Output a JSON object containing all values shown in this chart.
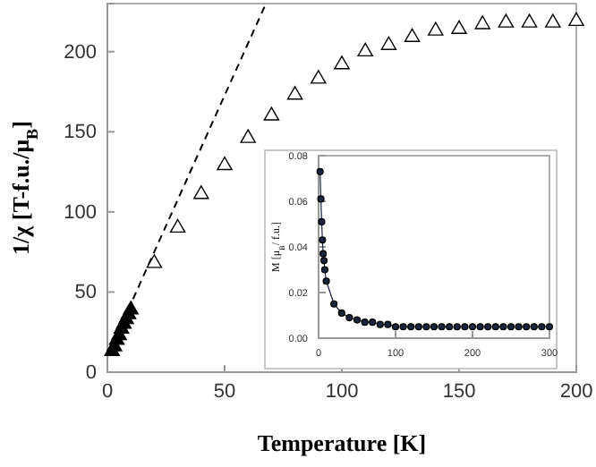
{
  "chart_data": [
    {
      "type": "scatter",
      "xlabel": "Temperature [K]",
      "ylabel": "1/χ [T-f.u./μ$_{B}$]",
      "xlim": [
        0,
        200
      ],
      "ylim": [
        0,
        230
      ],
      "xticks": [
        0,
        50,
        100,
        150,
        200
      ],
      "yticks": [
        0,
        50,
        100,
        150,
        200
      ],
      "grid": false,
      "series": [
        {
          "type": "line",
          "color": "#000000",
          "line_style": "dashed",
          "marker": "none",
          "x": [
            0,
            67
          ],
          "values": [
            10,
            228
          ]
        },
        {
          "color": "#ffffff",
          "marker": "triangle",
          "x": [
            20,
            30,
            40,
            50,
            60,
            70,
            80,
            90,
            100,
            110,
            120,
            130,
            140,
            150,
            160,
            170,
            180,
            190,
            200
          ],
          "values": [
            68,
            90,
            111,
            129,
            146,
            160,
            173,
            183,
            192,
            200,
            204,
            209,
            213,
            214,
            217,
            218,
            218,
            218,
            219
          ]
        },
        {
          "color": "#000000",
          "marker": "triangle",
          "x": [
            2,
            3,
            4,
            5,
            6,
            7,
            8,
            9,
            10
          ],
          "values": [
            13,
            16,
            20,
            23,
            27,
            30,
            33,
            36,
            39
          ]
        }
      ]
    },
    {
      "type": "line",
      "ylabel": "M [μ$_{B}$/ f.u.]",
      "xlim": [
        0,
        300
      ],
      "ylim": [
        0,
        0.08
      ],
      "xticks": [
        0,
        100,
        200,
        300
      ],
      "yticks": [
        {
          "value": 0,
          "label": "0.00"
        },
        {
          "value": 0.02,
          "label": "0.02"
        },
        {
          "value": 0.04,
          "label": "0.04"
        },
        {
          "value": 0.06,
          "label": "0.06"
        },
        {
          "value": 0.08,
          "label": "0.08"
        }
      ],
      "grid": false,
      "marker": "circle",
      "line_style": "solid",
      "series": [
        {
          "color": "#1a2540",
          "x": [
            2,
            3,
            4,
            5,
            6,
            7,
            8,
            10,
            20,
            30,
            40,
            50,
            60,
            70,
            80,
            90,
            100,
            110,
            120,
            130,
            140,
            150,
            160,
            170,
            180,
            190,
            200,
            210,
            220,
            230,
            240,
            250,
            260,
            270,
            280,
            290,
            300
          ],
          "values": [
            0.073,
            0.061,
            0.051,
            0.043,
            0.037,
            0.034,
            0.03,
            0.025,
            0.015,
            0.011,
            0.009,
            0.008,
            0.007,
            0.007,
            0.006,
            0.006,
            0.005,
            0.005,
            0.005,
            0.005,
            0.005,
            0.005,
            0.005,
            0.005,
            0.005,
            0.005,
            0.005,
            0.005,
            0.005,
            0.005,
            0.005,
            0.005,
            0.005,
            0.005,
            0.005,
            0.005,
            0.005
          ]
        }
      ]
    }
  ]
}
